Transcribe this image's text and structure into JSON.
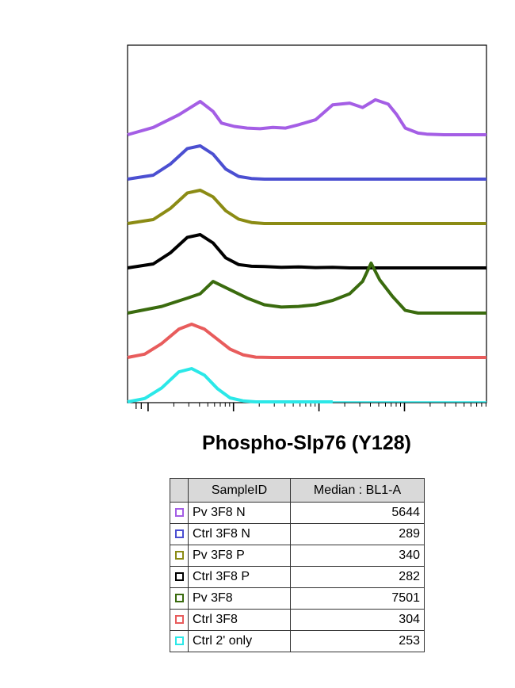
{
  "chart_data": {
    "type": "area",
    "x_scale": "log",
    "grid": false,
    "xlabel": "Phospho-Slp76 (Y128)",
    "ylabel": "",
    "legend_headers": [
      "SampleID",
      "Median : BL1-A"
    ],
    "series": [
      {
        "name": "Pv 3F8 N",
        "median": "5644",
        "color": "#a45ee5",
        "x": [
          0,
          0.3,
          0.6,
          0.85,
          1.0,
          1.1,
          1.25,
          1.4,
          1.55,
          1.7,
          1.85,
          2.0,
          2.2,
          2.4,
          2.6,
          2.75,
          2.9,
          3.05,
          3.15,
          3.25,
          3.4,
          3.5,
          3.6,
          3.7,
          3.8,
          3.9,
          4.0,
          4.2
        ],
        "y": [
          0.0,
          0.22,
          0.6,
          1.0,
          0.7,
          0.35,
          0.25,
          0.2,
          0.18,
          0.22,
          0.2,
          0.3,
          0.45,
          0.9,
          0.95,
          0.82,
          1.05,
          0.92,
          0.6,
          0.2,
          0.05,
          0.02,
          0.01,
          0.0,
          0.0,
          0.0,
          0.0,
          0.0
        ]
      },
      {
        "name": "Ctrl 3F8 N",
        "median": "289",
        "color": "#4b4fd1",
        "x": [
          0,
          0.3,
          0.5,
          0.7,
          0.85,
          1.0,
          1.15,
          1.3,
          1.45,
          1.6,
          1.8,
          2.0,
          2.5,
          3.0,
          3.5,
          4.2
        ],
        "y": [
          0.0,
          0.12,
          0.45,
          0.92,
          1.0,
          0.75,
          0.3,
          0.08,
          0.02,
          0.0,
          0.0,
          0.0,
          0.0,
          0.0,
          0.0,
          0.0
        ]
      },
      {
        "name": "Pv 3F8 P",
        "median": "340",
        "color": "#8b8b14",
        "x": [
          0,
          0.3,
          0.5,
          0.7,
          0.85,
          1.0,
          1.15,
          1.3,
          1.45,
          1.6,
          1.8,
          2.0,
          2.5,
          3.0,
          3.5,
          4.2
        ],
        "y": [
          0.0,
          0.12,
          0.45,
          0.92,
          1.0,
          0.8,
          0.38,
          0.13,
          0.03,
          0.0,
          0.0,
          0.0,
          0.0,
          0.0,
          0.0,
          0.0
        ]
      },
      {
        "name": "Ctrl 3F8 P",
        "median": "282",
        "color": "#000000",
        "x": [
          0,
          0.3,
          0.5,
          0.7,
          0.85,
          1.0,
          1.15,
          1.3,
          1.45,
          1.6,
          1.8,
          2.0,
          2.2,
          2.4,
          2.6,
          3.0,
          3.5,
          4.2
        ],
        "y": [
          0.0,
          0.12,
          0.45,
          0.92,
          1.0,
          0.75,
          0.3,
          0.1,
          0.05,
          0.04,
          0.02,
          0.03,
          0.01,
          0.02,
          0.0,
          0.0,
          0.0,
          0.0
        ]
      },
      {
        "name": "Pv 3F8",
        "median": "7501",
        "color": "#3a6b0e",
        "x": [
          0,
          0.4,
          0.7,
          0.85,
          1.0,
          1.2,
          1.4,
          1.6,
          1.8,
          2.0,
          2.2,
          2.4,
          2.6,
          2.75,
          2.85,
          2.95,
          3.1,
          3.25,
          3.4,
          3.55,
          3.7,
          3.9,
          4.2
        ],
        "y": [
          0.0,
          0.2,
          0.45,
          0.58,
          0.95,
          0.7,
          0.45,
          0.25,
          0.18,
          0.2,
          0.25,
          0.38,
          0.58,
          0.95,
          1.5,
          1.0,
          0.5,
          0.08,
          0.0,
          0.0,
          0.0,
          0.0,
          0.0
        ]
      },
      {
        "name": "Ctrl 3F8",
        "median": "304",
        "color": "#e85c5c",
        "x": [
          0,
          0.2,
          0.4,
          0.6,
          0.75,
          0.9,
          1.05,
          1.2,
          1.35,
          1.5,
          1.7,
          2.0,
          2.5,
          3.0,
          3.5,
          4.2
        ],
        "y": [
          0.0,
          0.1,
          0.42,
          0.85,
          1.0,
          0.85,
          0.55,
          0.25,
          0.08,
          0.01,
          0.0,
          0.0,
          0.0,
          0.0,
          0.0,
          0.0
        ]
      },
      {
        "name": "Ctrl 2' only",
        "median": "253",
        "color": "#2be8e8",
        "x": [
          0,
          0.2,
          0.4,
          0.6,
          0.75,
          0.9,
          1.05,
          1.2,
          1.35,
          1.5,
          1.7,
          2.0,
          2.4
        ],
        "y": [
          0.0,
          0.1,
          0.42,
          0.9,
          1.0,
          0.8,
          0.4,
          0.12,
          0.03,
          0.0,
          0.0,
          0.0,
          0.0
        ]
      }
    ]
  }
}
